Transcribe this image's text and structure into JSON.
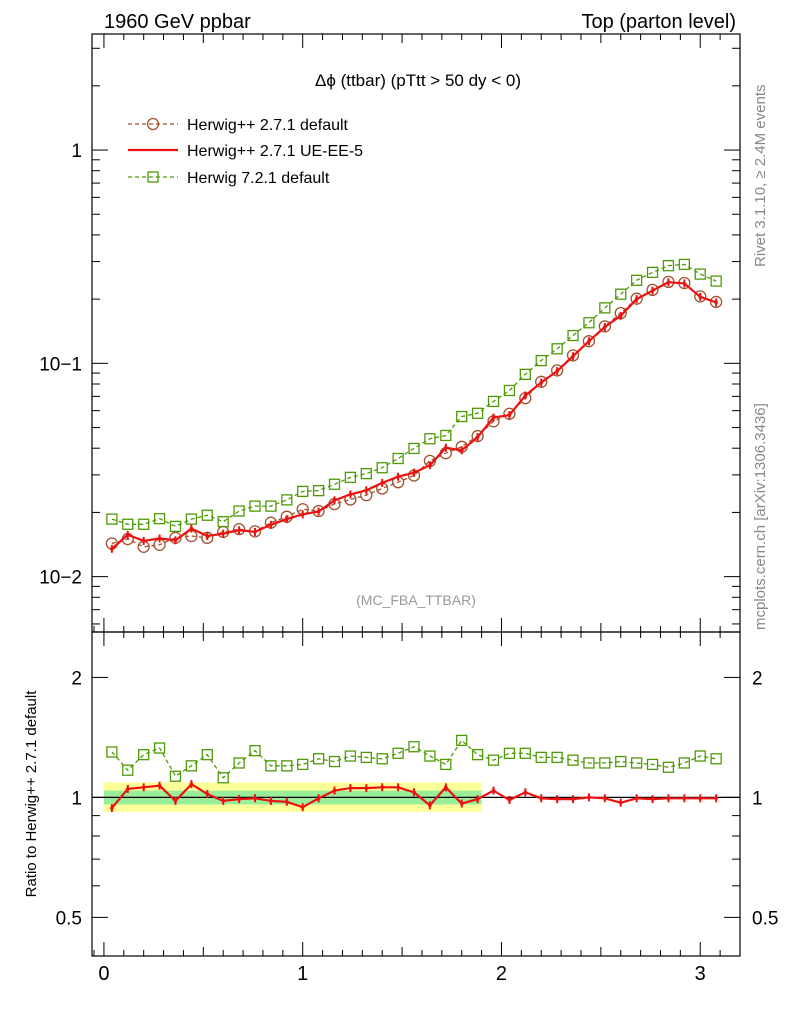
{
  "header": {
    "left": "1960 GeV ppbar",
    "right": "Top (parton level)"
  },
  "side_labels": {
    "rivet": "Rivet 3.1.10, ≥ 2.4M events",
    "mcplots": "mcplots.cern.ch [arXiv:1306.3436]"
  },
  "plot_title": "Δϕ (ttbar) (pTtt > 50 dy < 0)",
  "watermark": "(MC_FBA_TTBAR)",
  "ratio_ylabel": "Ratio to Herwig++ 2.7.1 default",
  "chart_data": [
    {
      "type": "line",
      "panel": "main",
      "yscale": "log",
      "xlim": [
        -0.06,
        3.2
      ],
      "ylim": [
        0.0055,
        3.5
      ],
      "x_ticks": [
        0,
        1,
        2,
        3
      ],
      "x_tick_labels": [
        "0",
        "1",
        "2",
        "3"
      ],
      "y_ticks": [
        0.01,
        0.1,
        1
      ],
      "y_tick_labels": [
        "10−2",
        "10−1",
        "1"
      ],
      "legend_position": "top-left",
      "x": [
        0.04,
        0.12,
        0.2,
        0.28,
        0.36,
        0.44,
        0.52,
        0.6,
        0.68,
        0.76,
        0.84,
        0.92,
        1.0,
        1.08,
        1.16,
        1.24,
        1.32,
        1.4,
        1.48,
        1.56,
        1.64,
        1.72,
        1.8,
        1.88,
        1.96,
        2.04,
        2.12,
        2.2,
        2.28,
        2.36,
        2.44,
        2.52,
        2.6,
        2.68,
        2.76,
        2.84,
        2.92,
        3.0,
        3.08
      ],
      "series": [
        {
          "name": "Herwig++ 2.7.1 default",
          "color": "#a0522d",
          "style": "dashed",
          "marker": "circle",
          "values": [
            0.0143,
            0.015,
            0.0138,
            0.0141,
            0.0152,
            0.0155,
            0.0152,
            0.0162,
            0.0167,
            0.0163,
            0.0179,
            0.0191,
            0.0207,
            0.0203,
            0.0219,
            0.023,
            0.0241,
            0.0259,
            0.0277,
            0.0298,
            0.0349,
            0.0379,
            0.0406,
            0.0456,
            0.0535,
            0.058,
            0.0687,
            0.0819,
            0.0927,
            0.109,
            0.127,
            0.149,
            0.172,
            0.201,
            0.221,
            0.241,
            0.238,
            0.206,
            0.194
          ]
        },
        {
          "name": "Herwig++ 2.7.1 UE-EE-5",
          "color": "#ee1111",
          "style": "solid",
          "marker": "errorbar",
          "values": [
            0.0135,
            0.0157,
            0.0147,
            0.0151,
            0.0148,
            0.0168,
            0.0155,
            0.0159,
            0.0165,
            0.0162,
            0.0175,
            0.0186,
            0.0196,
            0.0202,
            0.0228,
            0.0243,
            0.0254,
            0.0275,
            0.0294,
            0.0307,
            0.0333,
            0.0402,
            0.0391,
            0.0451,
            0.0557,
            0.0572,
            0.0707,
            0.0813,
            0.0919,
            0.108,
            0.127,
            0.148,
            0.167,
            0.2,
            0.219,
            0.24,
            0.237,
            0.205,
            0.193
          ]
        },
        {
          "name": "Herwig 7.2.1 default",
          "color": "#4e9a06",
          "style": "dashed",
          "marker": "square",
          "values": [
            0.0186,
            0.0176,
            0.0176,
            0.0187,
            0.0172,
            0.0186,
            0.0194,
            0.0181,
            0.0203,
            0.0214,
            0.0214,
            0.0229,
            0.0251,
            0.0253,
            0.0271,
            0.0292,
            0.0304,
            0.0324,
            0.0358,
            0.0399,
            0.0443,
            0.0459,
            0.0563,
            0.0583,
            0.0663,
            0.0746,
            0.0888,
            0.103,
            0.117,
            0.135,
            0.155,
            0.182,
            0.211,
            0.245,
            0.267,
            0.287,
            0.291,
            0.262,
            0.243
          ]
        }
      ]
    },
    {
      "type": "line",
      "panel": "ratio",
      "yscale": "log",
      "xlim": [
        -0.06,
        3.2
      ],
      "ylim": [
        0.4,
        2.6
      ],
      "x_ticks": [
        0,
        1,
        2,
        3
      ],
      "x_tick_labels": [
        "0",
        "1",
        "2",
        "3"
      ],
      "y_ticks": [
        0.5,
        1,
        2
      ],
      "y_tick_labels": [
        "0.5",
        "1",
        "2"
      ],
      "ylabel": "Ratio to Herwig++ 2.7.1 default",
      "x": [
        0.04,
        0.12,
        0.2,
        0.28,
        0.36,
        0.44,
        0.52,
        0.6,
        0.68,
        0.76,
        0.84,
        0.92,
        1.0,
        1.08,
        1.16,
        1.24,
        1.32,
        1.4,
        1.48,
        1.56,
        1.64,
        1.72,
        1.8,
        1.88,
        1.96,
        2.04,
        2.12,
        2.2,
        2.28,
        2.36,
        2.44,
        2.52,
        2.6,
        2.68,
        2.76,
        2.84,
        2.92,
        3.0,
        3.08
      ],
      "band": {
        "yellow": [
          0.92,
          1.09
        ],
        "green": [
          0.96,
          1.04
        ],
        "x_end": 1.9
      },
      "series": [
        {
          "name": "Herwig++ 2.7.1 UE-EE-5",
          "color": "#ee1111",
          "style": "solid",
          "marker": "errorbar",
          "values": [
            0.94,
            1.05,
            1.06,
            1.07,
            0.98,
            1.08,
            1.02,
            0.98,
            0.99,
            0.995,
            0.98,
            0.975,
            0.945,
            0.995,
            1.04,
            1.055,
            1.055,
            1.06,
            1.06,
            1.03,
            0.955,
            1.06,
            0.965,
            0.99,
            1.04,
            0.985,
            1.03,
            0.995,
            0.99,
            0.99,
            1.0,
            0.995,
            0.97,
            0.995,
            0.99,
            0.995,
            0.995,
            0.995,
            0.995
          ]
        },
        {
          "name": "Herwig 7.2.1 default",
          "color": "#4e9a06",
          "style": "dashed",
          "marker": "square",
          "values": [
            1.3,
            1.17,
            1.28,
            1.33,
            1.13,
            1.2,
            1.28,
            1.12,
            1.22,
            1.31,
            1.2,
            1.2,
            1.21,
            1.25,
            1.23,
            1.27,
            1.26,
            1.25,
            1.29,
            1.34,
            1.27,
            1.21,
            1.39,
            1.28,
            1.24,
            1.29,
            1.29,
            1.26,
            1.26,
            1.24,
            1.22,
            1.22,
            1.23,
            1.22,
            1.21,
            1.19,
            1.22,
            1.27,
            1.25
          ]
        }
      ]
    }
  ]
}
